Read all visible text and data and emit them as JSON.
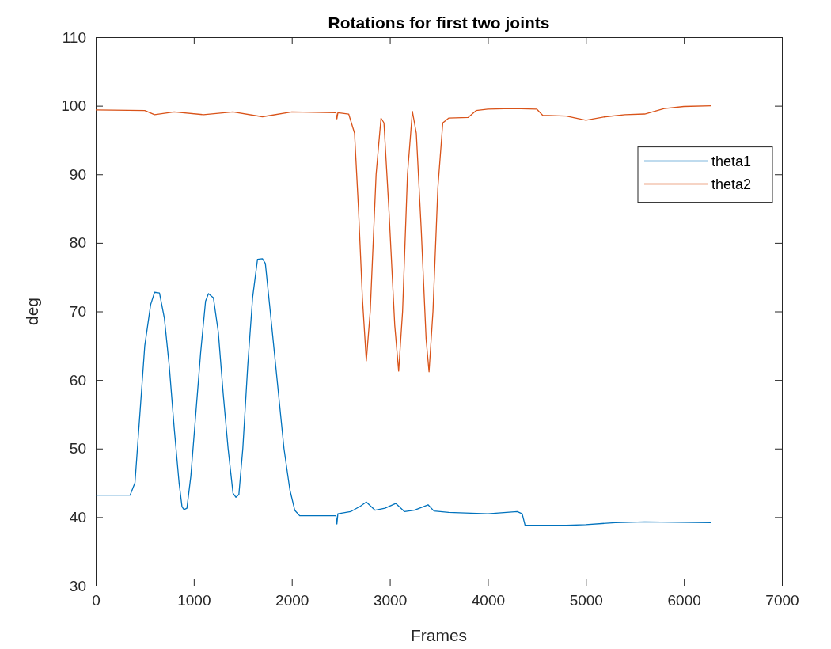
{
  "chart_data": {
    "type": "line",
    "title": "Rotations for first two joints",
    "xlabel": "Frames",
    "ylabel": "deg",
    "xlim": [
      0,
      7000
    ],
    "xticks": [
      0,
      1000,
      2000,
      3000,
      4000,
      5000,
      6000,
      7000
    ],
    "ylim": [
      30,
      110
    ],
    "yticks": [
      30,
      40,
      50,
      60,
      70,
      80,
      90,
      100,
      110
    ],
    "grid": false,
    "legend": "top right",
    "line_style": "solid",
    "marker": "none",
    "series": [
      {
        "name": "theta1",
        "color": "#0072bd",
        "x": [
          0,
          350,
          400,
          450,
          500,
          560,
          600,
          650,
          700,
          750,
          800,
          850,
          880,
          900,
          930,
          970,
          1020,
          1070,
          1120,
          1150,
          1200,
          1250,
          1300,
          1350,
          1400,
          1430,
          1460,
          1500,
          1550,
          1600,
          1650,
          1700,
          1730,
          1780,
          1850,
          1920,
          1980,
          2030,
          2080,
          2450,
          2460,
          2470,
          2600,
          2700,
          2760,
          2850,
          2950,
          3060,
          3150,
          3250,
          3390,
          3450,
          3600,
          4000,
          4300,
          4350,
          4380,
          4800,
          5000,
          5300,
          5600,
          6280
        ],
        "values": [
          43.2,
          43.2,
          45,
          55,
          65,
          71,
          72.8,
          72.7,
          69,
          62,
          53,
          45,
          41.5,
          41.1,
          41.3,
          46,
          55,
          64,
          71.5,
          72.6,
          72,
          67,
          58,
          50,
          43.5,
          42.9,
          43.3,
          50,
          62,
          72,
          77.6,
          77.7,
          77,
          70,
          60,
          50,
          44,
          41,
          40.2,
          40.2,
          39,
          40.5,
          40.8,
          41.6,
          42.2,
          41,
          41.3,
          42,
          40.8,
          41,
          41.8,
          40.9,
          40.7,
          40.5,
          40.8,
          40.5,
          38.8,
          38.8,
          38.9,
          39.2,
          39.3,
          39.2
        ]
      },
      {
        "name": "theta2",
        "color": "#d95319",
        "x": [
          0,
          500,
          600,
          800,
          1100,
          1400,
          1700,
          2000,
          2450,
          2460,
          2470,
          2580,
          2640,
          2680,
          2720,
          2760,
          2800,
          2860,
          2910,
          2940,
          2990,
          3050,
          3090,
          3130,
          3180,
          3230,
          3270,
          3320,
          3370,
          3400,
          3440,
          3490,
          3540,
          3600,
          3800,
          3880,
          4000,
          4250,
          4500,
          4560,
          4800,
          5000,
          5200,
          5400,
          5600,
          5800,
          6000,
          6280
        ],
        "values": [
          99.4,
          99.3,
          98.7,
          99.1,
          98.7,
          99.1,
          98.4,
          99.1,
          99,
          98.1,
          99,
          98.8,
          96,
          85,
          72,
          62.8,
          70,
          90,
          98.2,
          97.5,
          85,
          68,
          61.3,
          70,
          90,
          99.2,
          96,
          82,
          66,
          61.2,
          70,
          88,
          97.5,
          98.2,
          98.3,
          99.3,
          99.5,
          99.6,
          99.5,
          98.6,
          98.5,
          97.9,
          98.4,
          98.7,
          98.8,
          99.6,
          99.9,
          100
        ]
      }
    ]
  }
}
